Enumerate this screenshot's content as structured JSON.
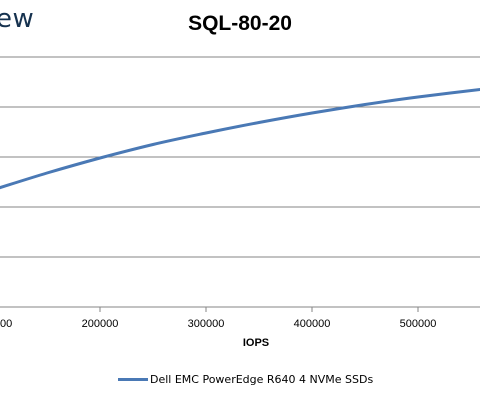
{
  "watermark": "ew",
  "chart_data": {
    "type": "line",
    "title": "SQL-80-20",
    "xlabel": "IOPS",
    "ylabel": "",
    "x_ticks": [
      "00",
      "200000",
      "300000",
      "400000",
      "500000"
    ],
    "xlim": [
      100000,
      570000
    ],
    "ylim": [
      0,
      6
    ],
    "grid": "horizontal",
    "legend_position": "bottom",
    "series": [
      {
        "name": "Dell EMC PowerEdge R640 4 NVMe SSDs",
        "color": "#4a79b5",
        "x": [
          100000,
          150000,
          200000,
          250000,
          300000,
          350000,
          400000,
          450000,
          500000,
          570000
        ],
        "y": [
          2.35,
          2.68,
          2.98,
          3.25,
          3.48,
          3.69,
          3.88,
          4.05,
          4.2,
          4.38
        ]
      }
    ]
  }
}
